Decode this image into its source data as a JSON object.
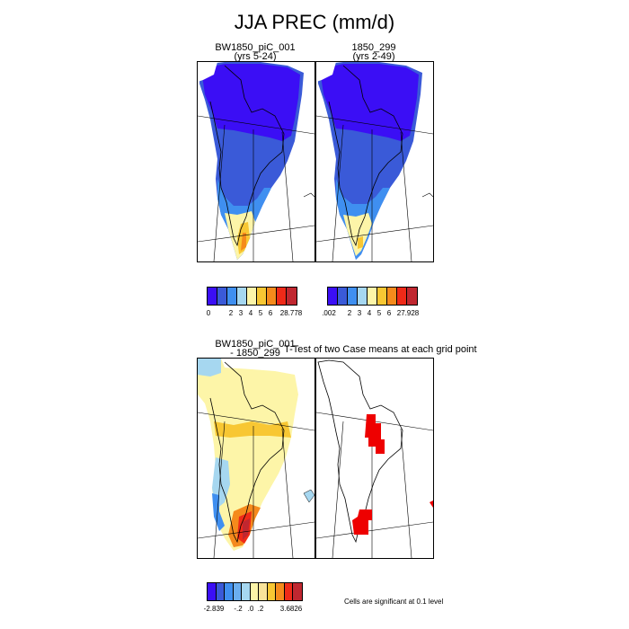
{
  "title": "JJA PREC (mm/d)",
  "panels": [
    {
      "title": "BW1850_piC_001",
      "subtitle": "(yrs 5-24)"
    },
    {
      "title": "1850_299",
      "subtitle": "(yrs 2-49)"
    },
    {
      "title": "BW1850_piC_001",
      "subtitle": "- 1850_299"
    },
    {
      "title": "T-Test of two Case means at each grid point",
      "subtitle": ""
    }
  ],
  "colorbars": [
    {
      "colors": [
        "#3b0ef5",
        "#3a5ad8",
        "#3f8ff0",
        "#a6d7f0",
        "#fdf5a8",
        "#f8c733",
        "#f58a1c",
        "#ef2a18",
        "#c02730"
      ],
      "ticks": [
        "0",
        "2",
        "3",
        "4",
        "5",
        "6",
        "28.778"
      ]
    },
    {
      "colors": [
        "#3b0ef5",
        "#3a5ad8",
        "#3f8ff0",
        "#a6d7f0",
        "#fdf5a8",
        "#f8c733",
        "#f58a1c",
        "#ef2a18",
        "#c02730"
      ],
      "ticks": [
        ".002",
        "2",
        "3",
        "4",
        "5",
        "6",
        "27.928"
      ]
    },
    {
      "colors": [
        "#3b0ef5",
        "#3a5ad8",
        "#3f8ff0",
        "#6baef0",
        "#a6d7f0",
        "#fdf5a8",
        "#f8e39a",
        "#f8c733",
        "#f58a1c",
        "#ef2a18",
        "#c02730"
      ],
      "ticks": [
        "-2.839",
        "-.2",
        ".0",
        ".2",
        "3.6826"
      ]
    }
  ],
  "significance_note": "Cells are significant at 0.1 level",
  "map_colors": {
    "deep_blue": "#3b0ef5",
    "mid_blue": "#3a5ad8",
    "light_blue": "#3f8ff0",
    "pale_blue": "#a6d7f0",
    "pale_yellow": "#fdf5a8",
    "yellow": "#f8c733",
    "orange": "#f58a1c",
    "red": "#ef2a18",
    "dark_red": "#c02730",
    "significant": "#ee0000"
  }
}
